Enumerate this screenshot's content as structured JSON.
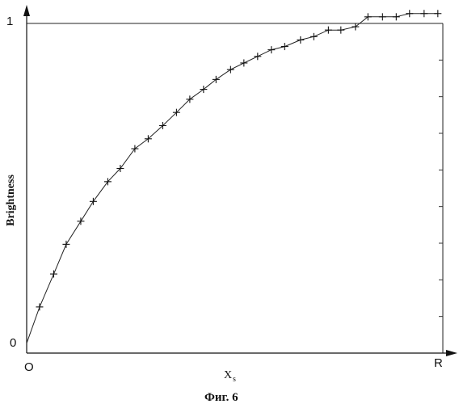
{
  "chart_data": {
    "type": "line",
    "title": "",
    "ylabel": "Brightness",
    "xlabel_main": "X",
    "xlabel_sub": "s",
    "caption": "Фиг. 6",
    "x_ticklabels": {
      "start": "O",
      "end": "R"
    },
    "y_ticklabels": {
      "start": "0",
      "end": "1"
    },
    "xlim": [
      0,
      1
    ],
    "ylim": [
      0,
      1
    ],
    "grid": false,
    "marker": "+",
    "series": [
      {
        "x": [
          0,
          0.031,
          0.065,
          0.095,
          0.13,
          0.16,
          0.195,
          0.225,
          0.26,
          0.292,
          0.327,
          0.36,
          0.392,
          0.425,
          0.455,
          0.49,
          0.522,
          0.555,
          0.588,
          0.62,
          0.658,
          0.69,
          0.725,
          0.755,
          0.79,
          0.82,
          0.855,
          0.888,
          0.92,
          0.955,
          0.988
        ],
        "y": [
          0.03,
          0.14,
          0.24,
          0.33,
          0.4,
          0.46,
          0.52,
          0.56,
          0.62,
          0.65,
          0.69,
          0.73,
          0.77,
          0.8,
          0.83,
          0.86,
          0.88,
          0.9,
          0.92,
          0.93,
          0.95,
          0.96,
          0.98,
          0.98,
          0.99,
          1.02,
          1.02,
          1.02,
          1.03,
          1.03,
          1.03
        ]
      }
    ]
  }
}
